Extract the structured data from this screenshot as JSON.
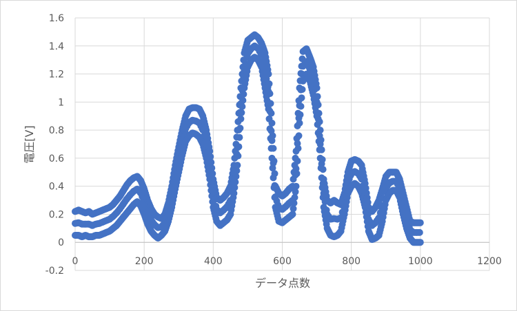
{
  "chart_data": {
    "type": "scatter",
    "title": "",
    "xlabel": "データ点数",
    "ylabel": "電圧[V]",
    "xlim": [
      0,
      1200
    ],
    "ylim": [
      -0.2,
      1.6
    ],
    "x_ticks": [
      0,
      200,
      400,
      600,
      800,
      1000,
      1200
    ],
    "y_ticks": [
      -0.2,
      0,
      0.2,
      0.4,
      0.6,
      0.8,
      1,
      1.2,
      1.4,
      1.6
    ],
    "y_tick_labels": [
      "-0.2",
      "0",
      "0.2",
      "0.4",
      "0.6",
      "0.8",
      "1",
      "1.2",
      "1.4",
      "1.6"
    ],
    "grid": "major-vertical-and-horizontal",
    "legend": "none",
    "marker_color": "#4472c4",
    "series": [
      {
        "x": [
          0,
          10,
          20,
          30,
          40,
          50,
          60,
          70,
          80,
          90,
          100,
          110,
          120,
          130,
          140,
          150,
          160,
          170,
          180,
          190,
          200,
          210,
          220,
          230,
          240,
          250,
          260,
          270,
          280,
          290,
          300,
          310,
          320,
          330,
          340,
          350,
          360,
          370,
          380,
          390,
          400,
          410,
          420,
          430,
          440,
          450,
          460,
          470,
          480,
          490,
          500,
          510,
          520,
          530,
          540,
          550,
          560,
          570,
          580,
          590,
          600,
          610,
          620,
          630,
          640,
          650,
          660,
          670,
          680,
          690,
          700,
          710,
          720,
          730,
          740,
          750,
          760,
          770,
          780,
          790,
          800,
          810,
          820,
          830,
          840,
          850,
          860,
          870,
          880,
          890,
          900,
          910,
          920,
          930,
          940,
          950,
          960,
          970,
          980,
          990,
          1000
        ],
        "upper": [
          0.22,
          0.23,
          0.22,
          0.21,
          0.22,
          0.2,
          0.21,
          0.22,
          0.23,
          0.24,
          0.25,
          0.27,
          0.3,
          0.33,
          0.37,
          0.41,
          0.44,
          0.46,
          0.47,
          0.44,
          0.38,
          0.3,
          0.24,
          0.2,
          0.18,
          0.17,
          0.2,
          0.28,
          0.4,
          0.55,
          0.68,
          0.8,
          0.9,
          0.95,
          0.96,
          0.96,
          0.95,
          0.9,
          0.8,
          0.65,
          0.45,
          0.32,
          0.3,
          0.32,
          0.35,
          0.4,
          0.55,
          0.8,
          1.1,
          1.35,
          1.44,
          1.46,
          1.48,
          1.46,
          1.42,
          1.35,
          1.2,
          0.85,
          0.4,
          0.35,
          0.33,
          0.35,
          0.38,
          0.4,
          0.65,
          1.1,
          1.36,
          1.38,
          1.32,
          1.25,
          1.1,
          0.8,
          0.45,
          0.3,
          0.28,
          0.3,
          0.28,
          0.27,
          0.35,
          0.5,
          0.58,
          0.59,
          0.58,
          0.55,
          0.42,
          0.25,
          0.22,
          0.25,
          0.3,
          0.38,
          0.47,
          0.5,
          0.5,
          0.5,
          0.45,
          0.35,
          0.25,
          0.15,
          0.14,
          0.14,
          0.14
        ],
        "lower": [
          0.05,
          0.05,
          0.04,
          0.05,
          0.04,
          0.04,
          0.05,
          0.05,
          0.06,
          0.07,
          0.08,
          0.1,
          0.12,
          0.15,
          0.18,
          0.21,
          0.24,
          0.27,
          0.29,
          0.26,
          0.2,
          0.13,
          0.08,
          0.05,
          0.03,
          0.05,
          0.08,
          0.15,
          0.25,
          0.38,
          0.5,
          0.62,
          0.72,
          0.76,
          0.78,
          0.77,
          0.75,
          0.7,
          0.6,
          0.45,
          0.25,
          0.15,
          0.12,
          0.14,
          0.16,
          0.2,
          0.35,
          0.55,
          0.88,
          1.1,
          1.25,
          1.3,
          1.32,
          1.3,
          1.25,
          1.1,
          0.95,
          0.6,
          0.25,
          0.15,
          0.14,
          0.16,
          0.18,
          0.2,
          0.4,
          0.85,
          1.15,
          1.2,
          1.15,
          1.05,
          0.9,
          0.6,
          0.25,
          0.1,
          0.05,
          0.04,
          0.05,
          0.08,
          0.2,
          0.35,
          0.4,
          0.42,
          0.4,
          0.35,
          0.25,
          0.08,
          0.02,
          0.03,
          0.05,
          0.15,
          0.3,
          0.35,
          0.37,
          0.37,
          0.32,
          0.2,
          0.1,
          0.03,
          0,
          0,
          0
        ]
      }
    ]
  }
}
